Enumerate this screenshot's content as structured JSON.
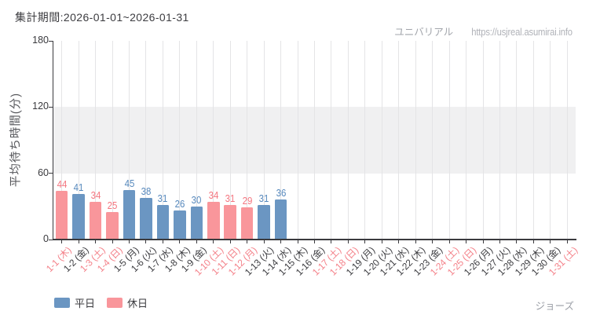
{
  "header": {
    "period_label": "集計期間:2026-01-01~2026-01-31",
    "site_name": "ユニバリアル",
    "site_url": "https://usjreal.asumirai.info"
  },
  "footer": {
    "attraction_name": "ジョーズ"
  },
  "legend": {
    "items": [
      {
        "label": "平日",
        "color": "#6B96C2"
      },
      {
        "label": "休日",
        "color": "#F9969B"
      }
    ]
  },
  "chart_data": {
    "type": "bar",
    "title": "集計期間:2026-01-01~2026-01-31",
    "xlabel": "",
    "ylabel": "平均待ち時間(分)",
    "ylim": [
      0,
      180
    ],
    "yticks": [
      0,
      60,
      120,
      180
    ],
    "grid": "vertical-per-day",
    "shaded_band": {
      "from": 60,
      "to": 120,
      "color": "#f0f0f1"
    },
    "legend_position": "bottom-left",
    "series": [
      {
        "name": "平日",
        "color": "#6B96C2",
        "value_label_color": "#5688BC"
      },
      {
        "name": "休日",
        "color": "#F9969B",
        "value_label_color": "#F4757F"
      }
    ],
    "days": [
      {
        "date": "1-1 (木)",
        "holiday": true,
        "value": 44
      },
      {
        "date": "1-2 (金)",
        "holiday": false,
        "value": 41
      },
      {
        "date": "1-3 (土)",
        "holiday": true,
        "value": 34
      },
      {
        "date": "1-4 (日)",
        "holiday": true,
        "value": 25
      },
      {
        "date": "1-5 (月)",
        "holiday": false,
        "value": 45
      },
      {
        "date": "1-6 (火)",
        "holiday": false,
        "value": 38
      },
      {
        "date": "1-7 (水)",
        "holiday": false,
        "value": 31
      },
      {
        "date": "1-8 (木)",
        "holiday": false,
        "value": 26
      },
      {
        "date": "1-9 (金)",
        "holiday": false,
        "value": 30
      },
      {
        "date": "1-10 (土)",
        "holiday": true,
        "value": 34
      },
      {
        "date": "1-11 (日)",
        "holiday": true,
        "value": 31
      },
      {
        "date": "1-12 (月)",
        "holiday": true,
        "value": 29
      },
      {
        "date": "1-13 (火)",
        "holiday": false,
        "value": 31
      },
      {
        "date": "1-14 (水)",
        "holiday": false,
        "value": 36
      },
      {
        "date": "1-15 (木)",
        "holiday": false,
        "value": null
      },
      {
        "date": "1-16 (金)",
        "holiday": false,
        "value": null
      },
      {
        "date": "1-17 (土)",
        "holiday": true,
        "value": null
      },
      {
        "date": "1-18 (日)",
        "holiday": true,
        "value": null
      },
      {
        "date": "1-19 (月)",
        "holiday": false,
        "value": null
      },
      {
        "date": "1-20 (火)",
        "holiday": false,
        "value": null
      },
      {
        "date": "1-21 (水)",
        "holiday": false,
        "value": null
      },
      {
        "date": "1-22 (木)",
        "holiday": false,
        "value": null
      },
      {
        "date": "1-23 (金)",
        "holiday": false,
        "value": null
      },
      {
        "date": "1-24 (土)",
        "holiday": true,
        "value": null
      },
      {
        "date": "1-25 (日)",
        "holiday": true,
        "value": null
      },
      {
        "date": "1-26 (月)",
        "holiday": false,
        "value": null
      },
      {
        "date": "1-27 (火)",
        "holiday": false,
        "value": null
      },
      {
        "date": "1-28 (水)",
        "holiday": false,
        "value": null
      },
      {
        "date": "1-29 (木)",
        "holiday": false,
        "value": null
      },
      {
        "date": "1-30 (金)",
        "holiday": false,
        "value": null
      },
      {
        "date": "1-31 (土)",
        "holiday": true,
        "value": null
      }
    ],
    "colors": {
      "weekday_bar": "#6B96C2",
      "holiday_bar": "#F9969B",
      "weekday_value_label": "#5688BC",
      "holiday_value_label": "#F4757F",
      "xlabel_weekday": "#3d3d41",
      "xlabel_holiday": "#F4828A",
      "axis": "#3a3a3e",
      "gridline": "#e4e4e6",
      "band": "#f0f0f1"
    }
  }
}
